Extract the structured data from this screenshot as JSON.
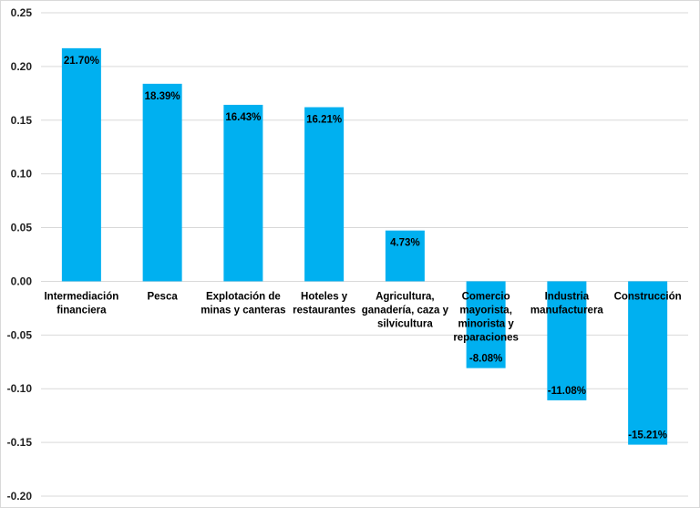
{
  "chart_data": {
    "type": "bar",
    "title": "",
    "xlabel": "",
    "ylabel": "",
    "ylim": [
      -0.2,
      0.25
    ],
    "y_ticks": [
      "0.25",
      "0.20",
      "0.15",
      "0.10",
      "0.05",
      "0.00",
      "-0.05",
      "-0.10",
      "-0.15",
      "-0.20"
    ],
    "grid": true,
    "bar_color": "#00B0F0",
    "categories": [
      [
        "Intermediación",
        "financiera"
      ],
      [
        "Pesca"
      ],
      [
        "Explotación de",
        "minas y canteras"
      ],
      [
        "Hoteles y",
        "restaurantes"
      ],
      [
        "Agricultura,",
        "ganadería, caza y",
        "silvicultura"
      ],
      [
        "Comercio",
        "mayorista,",
        "minorista y",
        "reparaciones"
      ],
      [
        "Industria",
        "manufacturera"
      ],
      [
        "Construcción"
      ]
    ],
    "values": [
      0.217,
      0.1839,
      0.1643,
      0.1621,
      0.0473,
      -0.0808,
      -0.1108,
      -0.1521
    ],
    "data_labels": [
      "21.70%",
      "18.39%",
      "16.43%",
      "16.21%",
      "4.73%",
      "-8.08%",
      "-11.08%",
      "-15.21%"
    ]
  }
}
